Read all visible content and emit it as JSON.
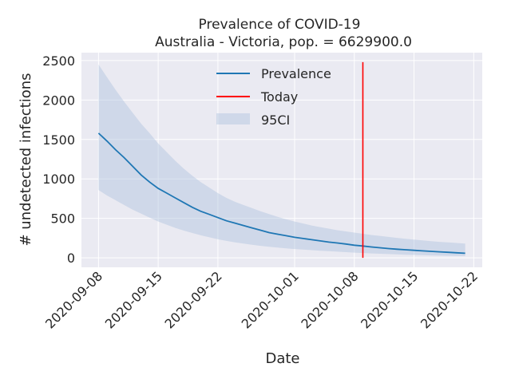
{
  "chart_data": {
    "type": "line",
    "title": "Prevalence of COVID-19",
    "subtitle": "Australia - Victoria, pop. = 6629900.0",
    "xlabel": "Date",
    "ylabel": "# undetected infections",
    "x_ticks": [
      "2020-09-08",
      "2020-09-15",
      "2020-09-22",
      "2020-10-01",
      "2020-10-08",
      "2020-10-15",
      "2020-10-22"
    ],
    "y_ticks": [
      0,
      500,
      1000,
      1500,
      2000,
      2500
    ],
    "xlim": [
      "2020-09-06",
      "2020-10-23"
    ],
    "ylim": [
      -120,
      2600
    ],
    "grid": true,
    "legend_position": "top-center",
    "colors": {
      "prevalence": "#1f77b4",
      "today": "#ff0000",
      "ci_band": "#b0c4de",
      "plot_background": "#eaeaf2",
      "grid": "#ffffff"
    },
    "series": [
      {
        "name": "Prevalence",
        "x": [
          "2020-09-08",
          "2020-09-09",
          "2020-09-10",
          "2020-09-11",
          "2020-09-12",
          "2020-09-13",
          "2020-09-14",
          "2020-09-15",
          "2020-09-16",
          "2020-09-17",
          "2020-09-18",
          "2020-09-19",
          "2020-09-20",
          "2020-09-21",
          "2020-09-22",
          "2020-09-23",
          "2020-09-24",
          "2020-09-25",
          "2020-09-26",
          "2020-09-27",
          "2020-09-28",
          "2020-09-29",
          "2020-09-30",
          "2020-10-01",
          "2020-10-02",
          "2020-10-03",
          "2020-10-04",
          "2020-10-05",
          "2020-10-06",
          "2020-10-07",
          "2020-10-08",
          "2020-10-09",
          "2020-10-10",
          "2020-10-11",
          "2020-10-12",
          "2020-10-13",
          "2020-10-14",
          "2020-10-15",
          "2020-10-16",
          "2020-10-17",
          "2020-10-18",
          "2020-10-19",
          "2020-10-20",
          "2020-10-21"
        ],
        "values": [
          1580,
          1480,
          1370,
          1270,
          1160,
          1050,
          960,
          880,
          820,
          760,
          700,
          640,
          590,
          550,
          510,
          470,
          440,
          410,
          380,
          350,
          320,
          300,
          280,
          260,
          245,
          230,
          215,
          200,
          188,
          175,
          160,
          150,
          138,
          128,
          118,
          110,
          102,
          95,
          88,
          82,
          76,
          70,
          64,
          58
        ]
      },
      {
        "name": "95CI",
        "x": [
          "2020-09-08",
          "2020-09-09",
          "2020-09-10",
          "2020-09-11",
          "2020-09-12",
          "2020-09-13",
          "2020-09-14",
          "2020-09-15",
          "2020-09-16",
          "2020-09-17",
          "2020-09-18",
          "2020-09-19",
          "2020-09-20",
          "2020-09-21",
          "2020-09-22",
          "2020-09-23",
          "2020-09-24",
          "2020-09-25",
          "2020-09-26",
          "2020-09-27",
          "2020-09-28",
          "2020-09-29",
          "2020-09-30",
          "2020-10-01",
          "2020-10-02",
          "2020-10-03",
          "2020-10-04",
          "2020-10-05",
          "2020-10-06",
          "2020-10-07",
          "2020-10-08",
          "2020-10-09",
          "2020-10-10",
          "2020-10-11",
          "2020-10-12",
          "2020-10-13",
          "2020-10-14",
          "2020-10-15",
          "2020-10-16",
          "2020-10-17",
          "2020-10-18",
          "2020-10-19",
          "2020-10-20",
          "2020-10-21"
        ],
        "lower": [
          860,
          790,
          730,
          670,
          610,
          560,
          510,
          460,
          420,
          380,
          345,
          315,
          285,
          260,
          235,
          215,
          195,
          180,
          165,
          152,
          140,
          130,
          120,
          112,
          104,
          97,
          90,
          84,
          78,
          72,
          66,
          61,
          56,
          52,
          48,
          44,
          40,
          37,
          34,
          31,
          28,
          26,
          24,
          22
        ],
        "upper": [
          2450,
          2290,
          2130,
          1980,
          1840,
          1700,
          1580,
          1450,
          1340,
          1230,
          1130,
          1040,
          960,
          890,
          820,
          760,
          710,
          670,
          630,
          590,
          555,
          520,
          490,
          460,
          435,
          410,
          390,
          370,
          350,
          335,
          320,
          305,
          290,
          278,
          265,
          253,
          242,
          232,
          222,
          212,
          203,
          195,
          188,
          180
        ]
      }
    ],
    "markers": [
      {
        "name": "Today",
        "x": "2020-10-09",
        "y_range": [
          0,
          2480
        ]
      }
    ],
    "legend": [
      "Prevalence",
      "Today",
      "95CI"
    ]
  }
}
